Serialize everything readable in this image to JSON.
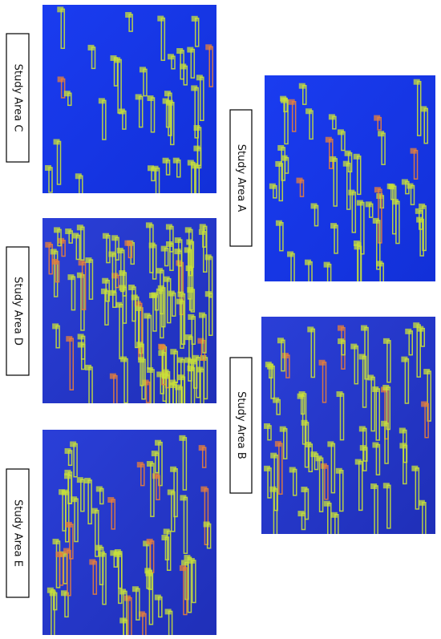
{
  "panels": [
    {
      "label": "Study Area C"
    },
    {
      "label": "Study Area D"
    },
    {
      "label": "Study Area E"
    },
    {
      "label": "Study Area A"
    },
    {
      "label": "Study Area B"
    }
  ]
}
